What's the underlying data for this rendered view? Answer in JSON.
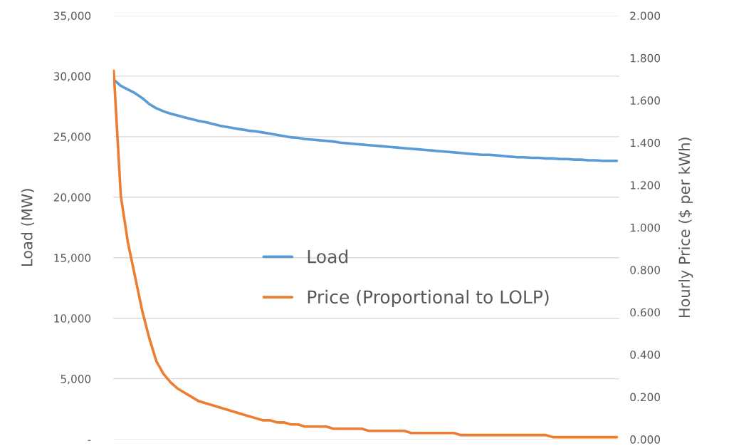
{
  "chart_data": {
    "type": "line",
    "ylabel": "Load (MW)",
    "y2label": "Hourly Price ($ per kWh)",
    "categories": [
      null,
      null,
      null,
      null,
      null,
      null,
      null,
      null,
      null,
      null,
      null,
      null,
      null,
      null,
      null,
      null,
      null,
      null,
      null,
      null,
      null,
      null,
      null,
      null,
      null,
      null,
      null,
      null,
      null,
      null,
      null,
      null,
      null,
      null,
      null,
      null,
      null,
      null,
      null,
      null,
      null,
      null,
      null,
      null,
      null,
      null,
      null,
      null,
      null,
      null,
      null,
      null,
      null,
      null,
      null,
      null,
      null,
      null,
      null,
      null,
      null,
      null,
      null,
      null,
      null,
      null,
      null,
      null,
      null,
      null,
      null,
      null
    ],
    "series": [
      {
        "name": "Load",
        "color": "#5b9bd5",
        "values": [
          29700,
          29200,
          28900,
          28600,
          28200,
          27700,
          27350,
          27100,
          26900,
          26750,
          26600,
          26450,
          26300,
          26200,
          26050,
          25900,
          25800,
          25700,
          25600,
          25500,
          25450,
          25350,
          25250,
          25150,
          25050,
          24950,
          24900,
          24800,
          24750,
          24700,
          24650,
          24600,
          24500,
          24450,
          24400,
          24350,
          24300,
          24250,
          24200,
          24150,
          24100,
          24050,
          24000,
          23950,
          23900,
          23850,
          23800,
          23750,
          23700,
          23650,
          23600,
          23550,
          23500,
          23500,
          23450,
          23400,
          23350,
          23300,
          23300,
          23250,
          23250,
          23200,
          23200,
          23150,
          23150,
          23100,
          23100,
          23050,
          23050,
          23000,
          23000,
          23000
        ]
      },
      {
        "name": "Price (Proportional to LOLP)",
        "color": "#ed7d31",
        "axis": "y2",
        "values": [
          1.74,
          1.15,
          0.93,
          0.77,
          0.61,
          0.48,
          0.37,
          0.31,
          0.27,
          0.24,
          0.22,
          0.2,
          0.18,
          0.17,
          0.16,
          0.15,
          0.14,
          0.13,
          0.12,
          0.11,
          0.1,
          0.09,
          0.09,
          0.08,
          0.08,
          0.07,
          0.07,
          0.06,
          0.06,
          0.06,
          0.06,
          0.05,
          0.05,
          0.05,
          0.05,
          0.05,
          0.04,
          0.04,
          0.04,
          0.04,
          0.04,
          0.04,
          0.03,
          0.03,
          0.03,
          0.03,
          0.03,
          0.03,
          0.03,
          0.02,
          0.02,
          0.02,
          0.02,
          0.02,
          0.02,
          0.02,
          0.02,
          0.02,
          0.02,
          0.02,
          0.02,
          0.02,
          0.01,
          0.01,
          0.01,
          0.01,
          0.01,
          0.01,
          0.01,
          0.01,
          0.01,
          0.01
        ]
      }
    ],
    "ylim": [
      0,
      35000
    ],
    "yticks": [
      {
        "value": 0,
        "label": "-"
      },
      {
        "value": 5000,
        "label": "5,000"
      },
      {
        "value": 10000,
        "label": "10,000"
      },
      {
        "value": 15000,
        "label": "15,000"
      },
      {
        "value": 20000,
        "label": "20,000"
      },
      {
        "value": 25000,
        "label": "25,000"
      },
      {
        "value": 30000,
        "label": "30,000"
      },
      {
        "value": 35000,
        "label": "35,000"
      }
    ],
    "y2lim": [
      0,
      2
    ],
    "y2ticks": [
      {
        "value": 0,
        "label": "0.000"
      },
      {
        "value": 0.2,
        "label": "0.200"
      },
      {
        "value": 0.4,
        "label": "0.400"
      },
      {
        "value": 0.6,
        "label": "0.600"
      },
      {
        "value": 0.8,
        "label": "0.800"
      },
      {
        "value": 1.0,
        "label": "1.000"
      },
      {
        "value": 1.2,
        "label": "1.200"
      },
      {
        "value": 1.4,
        "label": "1.400"
      },
      {
        "value": 1.6,
        "label": "1.600"
      },
      {
        "value": 1.8,
        "label": "1.800"
      },
      {
        "value": 2.0,
        "label": "2.000"
      }
    ],
    "grid": "y",
    "legend": "center",
    "marker": "none",
    "line_style": "solid"
  }
}
